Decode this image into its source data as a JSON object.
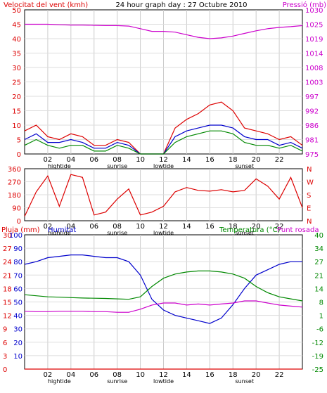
{
  "chart_data": [
    {
      "type": "line",
      "title": "24 hour graph day : 27 Octubre 2010",
      "left_axis_label": "Velocitat del vent (kmh)",
      "right_axis_label": "Pressió (mb)",
      "yticks_left": [
        "0",
        "5",
        "10",
        "15",
        "20",
        "25",
        "30",
        "35",
        "40",
        "45",
        "50"
      ],
      "yticks_right": [
        "975",
        "981",
        "986",
        "992",
        "997",
        "1003",
        "1008",
        "1014",
        "1019",
        "1025",
        "1030"
      ],
      "xticks": [
        "02",
        "04",
        "06",
        "08",
        "10",
        "12",
        "14",
        "16",
        "18",
        "20",
        "22"
      ],
      "ylim": [
        0,
        50
      ],
      "right_ylim": [
        975,
        1030
      ],
      "series": [
        {
          "color": "#dd0000",
          "x": [
            0,
            1,
            2,
            3,
            4,
            5,
            6,
            7,
            8,
            9,
            10,
            11,
            12,
            13,
            14,
            15,
            16,
            17,
            18,
            19,
            20,
            21,
            22,
            23,
            24
          ],
          "values": [
            8,
            10,
            6,
            5,
            7,
            6,
            3,
            3,
            5,
            4,
            0,
            0,
            0,
            9,
            12,
            14,
            17,
            18,
            15,
            9,
            8,
            7,
            5,
            6,
            3
          ]
        },
        {
          "color": "#0000cc",
          "x": [
            0,
            1,
            2,
            3,
            4,
            5,
            6,
            7,
            8,
            9,
            10,
            11,
            12,
            13,
            14,
            15,
            16,
            17,
            18,
            19,
            20,
            21,
            22,
            23,
            24
          ],
          "values": [
            5,
            7,
            4,
            4,
            5,
            4,
            2,
            2,
            4,
            3,
            0,
            0,
            0,
            6,
            8,
            9,
            10,
            10,
            9,
            6,
            5,
            5,
            3,
            4,
            2
          ]
        },
        {
          "color": "#008800",
          "x": [
            0,
            1,
            2,
            3,
            4,
            5,
            6,
            7,
            8,
            9,
            10,
            11,
            12,
            13,
            14,
            15,
            16,
            17,
            18,
            19,
            20,
            21,
            22,
            23,
            24
          ],
          "values": [
            3,
            5,
            3,
            2,
            3,
            3,
            1,
            1,
            3,
            2,
            0,
            0,
            0,
            4,
            6,
            7,
            8,
            8,
            7,
            4,
            3,
            3,
            2,
            3,
            1
          ]
        },
        {
          "color": "#cc00cc",
          "x": [
            0,
            1,
            2,
            3,
            4,
            5,
            6,
            7,
            8,
            9,
            10,
            11,
            12,
            13,
            14,
            15,
            16,
            17,
            18,
            19,
            20,
            21,
            22,
            23,
            24
          ],
          "values": [
            1024.5,
            1024.5,
            1024.5,
            1024.3,
            1024.2,
            1024.2,
            1024.1,
            1024,
            1024,
            1023.8,
            1022.8,
            1021.8,
            1021.8,
            1021.5,
            1020.5,
            1019.5,
            1019,
            1019.3,
            1020,
            1021,
            1022,
            1022.8,
            1023.3,
            1023.6,
            1024
          ]
        }
      ],
      "annotations": [
        "hightide",
        "sunrise",
        "lowtide",
        "sunset"
      ]
    },
    {
      "type": "line",
      "left_axis_ticks": [
        "0",
        "90",
        "180",
        "270",
        "360"
      ],
      "right_axis_ticks": [
        "N",
        "E",
        "S",
        "W",
        "N"
      ],
      "xticks": [
        "02",
        "04",
        "06",
        "08",
        "10",
        "12",
        "14",
        "16",
        "18",
        "20",
        "22"
      ],
      "ylim": [
        0,
        360
      ],
      "series": [
        {
          "color": "#dd0000",
          "x": [
            0,
            1,
            2,
            3,
            4,
            5,
            6,
            7,
            8,
            9,
            10,
            11,
            12,
            13,
            14,
            15,
            16,
            17,
            18,
            19,
            20,
            21,
            22,
            23,
            24
          ],
          "values": [
            30,
            200,
            310,
            100,
            320,
            300,
            40,
            60,
            150,
            220,
            40,
            60,
            100,
            200,
            230,
            210,
            205,
            215,
            200,
            210,
            290,
            240,
            150,
            300,
            90
          ]
        }
      ],
      "annotations": [
        "hightide",
        "sunrise",
        "lowtide",
        "sunset"
      ]
    },
    {
      "type": "line",
      "left_axis_label": "Pluja (mm)",
      "left_axis_label2": "Humitat",
      "right_axis_label": "Temperatura (°C)",
      "right_axis_label2": "Punt rosada",
      "yticks_left_rain": [
        "0",
        "3",
        "6",
        "9",
        "12",
        "15",
        "18",
        "21",
        "24",
        "27",
        "30"
      ],
      "yticks_left_hum": [
        "10",
        "20",
        "30",
        "40",
        "50",
        "60",
        "70",
        "80",
        "90",
        "100"
      ],
      "yticks_right": [
        "-25",
        "-19",
        "-12",
        "-6",
        "1",
        "8",
        "14",
        "21",
        "27",
        "34",
        "40"
      ],
      "xticks": [
        "02",
        "04",
        "06",
        "08",
        "10",
        "12",
        "14",
        "16",
        "18",
        "20",
        "22"
      ],
      "ylim": [
        0,
        100
      ],
      "right_ylim": [
        -25,
        40
      ],
      "series": [
        {
          "name": "Humitat",
          "color": "#0000cc",
          "x": [
            0,
            1,
            2,
            3,
            4,
            5,
            6,
            7,
            8,
            9,
            10,
            11,
            12,
            13,
            14,
            15,
            16,
            17,
            18,
            19,
            20,
            21,
            22,
            23,
            24
          ],
          "values": [
            78,
            80,
            83,
            84,
            85,
            85,
            84,
            83,
            83,
            80,
            70,
            52,
            44,
            40,
            38,
            36,
            34,
            38,
            48,
            60,
            70,
            74,
            78,
            80,
            80
          ]
        },
        {
          "name": "Temperatura",
          "color": "#008800",
          "x": [
            0,
            1,
            2,
            3,
            4,
            5,
            6,
            7,
            8,
            9,
            10,
            11,
            12,
            13,
            14,
            15,
            16,
            17,
            18,
            19,
            20,
            21,
            22,
            23,
            24
          ],
          "values": [
            11,
            10.5,
            10,
            9.8,
            9.6,
            9.4,
            9.3,
            9.2,
            9,
            8.8,
            10,
            15,
            19,
            21,
            22,
            22.5,
            22.5,
            22,
            21,
            19,
            15,
            12,
            10,
            9,
            8
          ]
        },
        {
          "name": "Punt rosada",
          "color": "#cc00cc",
          "x": [
            0,
            1,
            2,
            3,
            4,
            5,
            6,
            7,
            8,
            9,
            10,
            11,
            12,
            13,
            14,
            15,
            16,
            17,
            18,
            19,
            20,
            21,
            22,
            23,
            24
          ],
          "values": [
            3,
            2.8,
            2.8,
            3,
            3,
            3,
            2.8,
            2.8,
            2.5,
            2.5,
            4,
            6,
            7,
            7,
            6,
            6.5,
            6,
            6.5,
            7,
            8,
            8,
            7,
            6,
            5.5,
            5
          ]
        },
        {
          "name": "Pluja",
          "color": "#dd0000",
          "x": [
            0,
            24
          ],
          "values": [
            0,
            0
          ]
        }
      ],
      "annotations": [
        "hightide",
        "sunrise",
        "lowtide",
        "sunset"
      ]
    }
  ],
  "colors": {
    "red": "#dd0000",
    "blue": "#0000cc",
    "green": "#008800",
    "magenta": "#cc00cc"
  }
}
